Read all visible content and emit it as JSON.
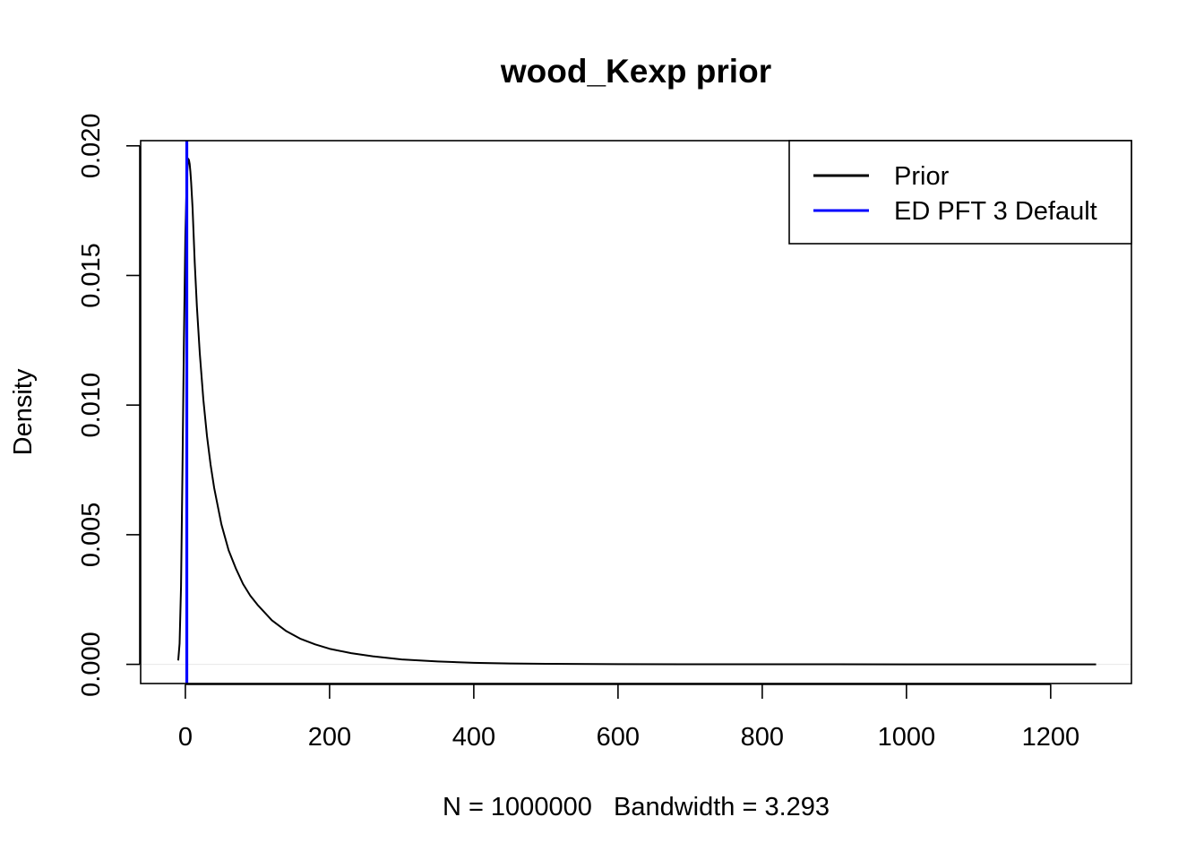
{
  "chart_data": {
    "type": "line",
    "title": "wood_Kexp prior",
    "xlabel": "N = 1000000   Bandwidth = 3.293",
    "ylabel": "Density",
    "xlim": [
      -62,
      1312
    ],
    "ylim": [
      -0.00074,
      0.0202
    ],
    "x_ticks": [
      0,
      200,
      400,
      600,
      800,
      1000,
      1200
    ],
    "x_tick_labels": [
      "0",
      "200",
      "400",
      "600",
      "800",
      "1000",
      "1200"
    ],
    "y_ticks": [
      0.0,
      0.005,
      0.01,
      0.015,
      0.02
    ],
    "y_tick_labels": [
      "0.000",
      "0.005",
      "0.010",
      "0.015",
      "0.020"
    ],
    "grid": false,
    "legend_position": "top-right",
    "series": [
      {
        "name": "Prior",
        "color": "#000000",
        "x": [
          -9.9,
          -8,
          -6,
          -4,
          -2,
          0,
          2,
          4,
          5,
          6,
          7,
          8,
          10,
          13,
          16,
          20,
          25,
          30,
          35,
          40,
          50,
          60,
          70,
          80,
          90,
          100,
          120,
          140,
          160,
          180,
          200,
          230,
          260,
          300,
          350,
          400,
          450,
          500,
          600,
          700,
          800,
          900,
          1000,
          1100,
          1263
        ],
        "y": [
          0.00015,
          0.0008,
          0.003,
          0.0075,
          0.0125,
          0.0165,
          0.0188,
          0.0195,
          0.01945,
          0.0193,
          0.019,
          0.0186,
          0.0176,
          0.0155,
          0.0138,
          0.012,
          0.0102,
          0.0088,
          0.0077,
          0.0068,
          0.0054,
          0.0044,
          0.0037,
          0.0031,
          0.00265,
          0.0023,
          0.0017,
          0.00128,
          0.00098,
          0.00077,
          0.0006,
          0.00043,
          0.00031,
          0.00019,
          0.00011,
          6e-05,
          3.5e-05,
          2e-05,
          8e-06,
          3e-06,
          1.5e-06,
          8e-07,
          4e-07,
          2e-07,
          1e-07
        ]
      },
      {
        "name": "ED PFT 3 Default",
        "color": "#0000ff",
        "type": "vline",
        "x_value": 2
      }
    ]
  }
}
